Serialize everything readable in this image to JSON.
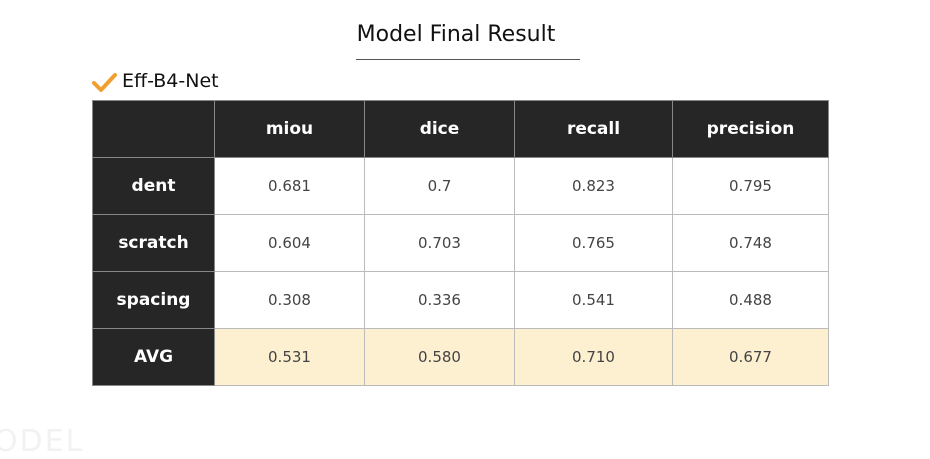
{
  "header": {
    "title": "Model Final Result"
  },
  "section": {
    "label": "Eff-B4-Net"
  },
  "table": {
    "columns": [
      "miou",
      "dice",
      "recall",
      "precision"
    ],
    "rows": [
      {
        "label": "dent",
        "cells": [
          "0.681",
          "0.7",
          "0.823",
          "0.795"
        ]
      },
      {
        "label": "scratch",
        "cells": [
          "0.604",
          "0.703",
          "0.765",
          "0.748"
        ]
      },
      {
        "label": "spacing",
        "cells": [
          "0.308",
          "0.336",
          "0.541",
          "0.488"
        ]
      },
      {
        "label": "AVG",
        "cells": [
          "0.531",
          "0.580",
          "0.710",
          "0.677"
        ],
        "highlight": true
      }
    ]
  },
  "watermark": "ODEL"
}
